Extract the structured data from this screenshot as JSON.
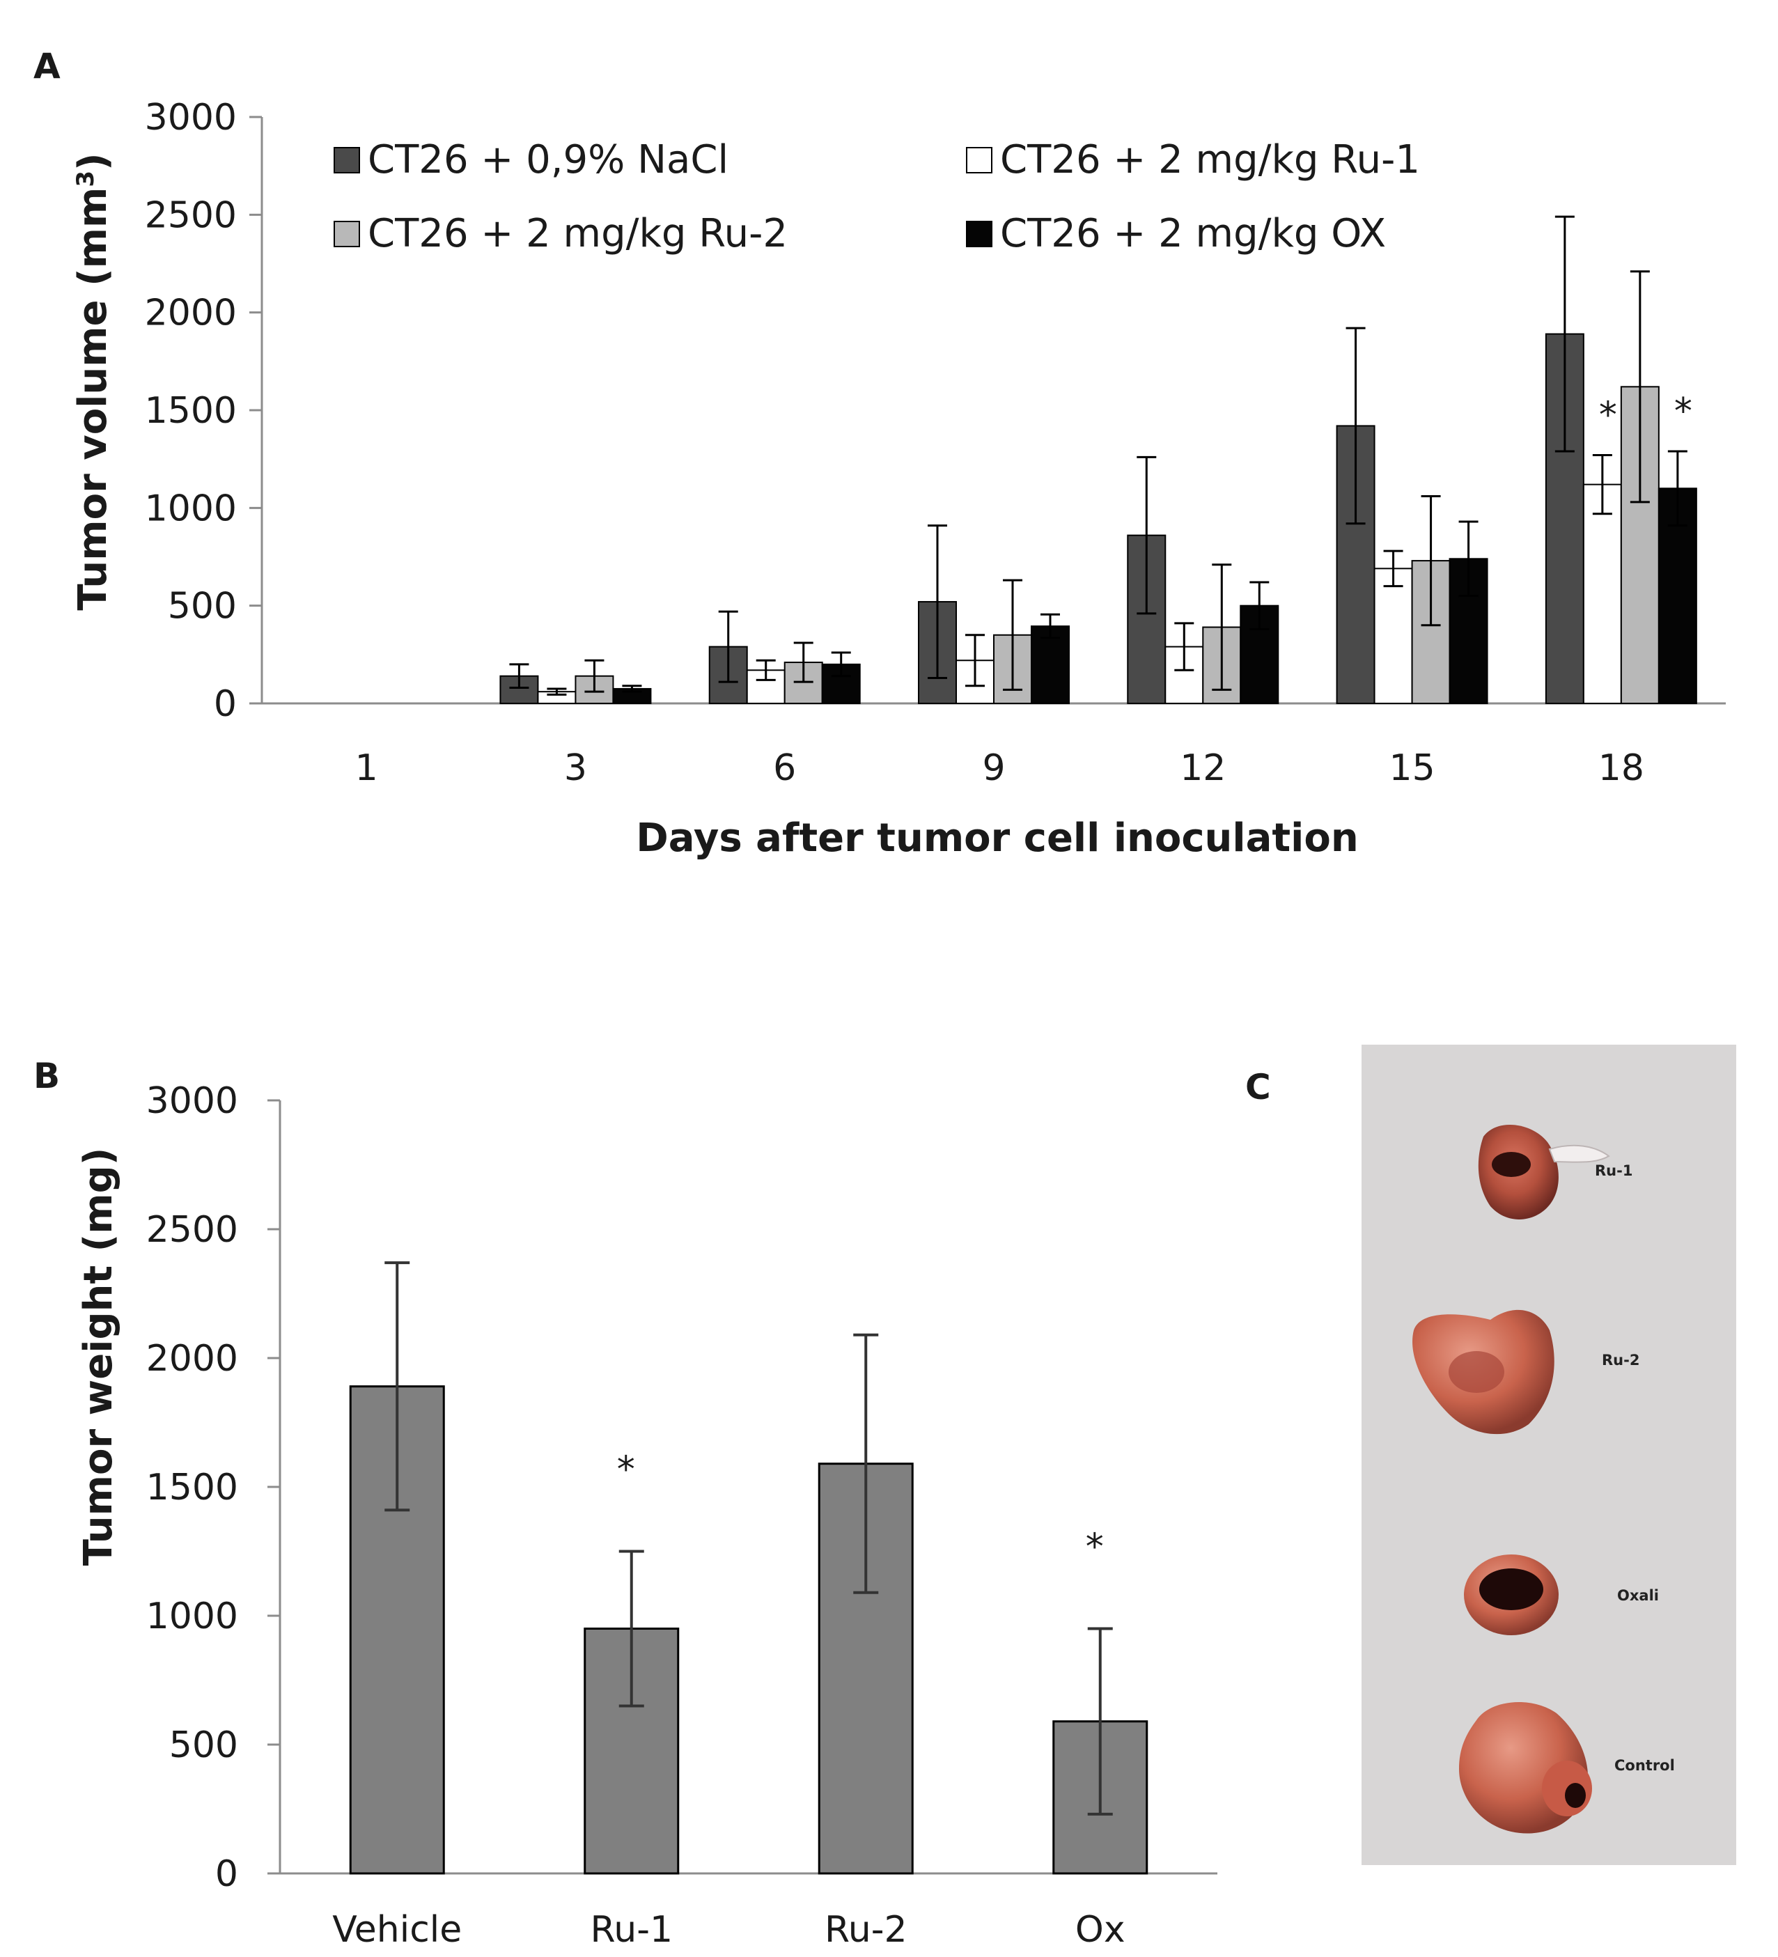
{
  "panel_a": {
    "letter": "A",
    "chart_data": {
      "type": "bar",
      "ylabel_main": "Tumor volume (mm",
      "ylabel_sup": "3",
      "ylabel_close": ")",
      "xlabel": "Days after tumor cell inoculation",
      "ylim": [
        0,
        3000
      ],
      "yticks": [
        "0",
        "500",
        "1000",
        "1500",
        "2000",
        "2500",
        "3000"
      ],
      "categories": [
        "1",
        "3",
        "6",
        "9",
        "12",
        "15",
        "18"
      ],
      "series": [
        {
          "name": "CT26 + 0,9% NaCl",
          "color": "#4a4a4a",
          "values": [
            0,
            140,
            290,
            520,
            860,
            1420,
            1890
          ],
          "errors": [
            0,
            60,
            180,
            390,
            400,
            500,
            600
          ]
        },
        {
          "name": "CT26 + 2 mg/kg Ru-1",
          "color": "#ffffff",
          "values": [
            0,
            60,
            170,
            220,
            290,
            690,
            1120
          ],
          "errors": [
            0,
            15,
            50,
            130,
            120,
            90,
            150
          ]
        },
        {
          "name": "CT26 + 2 mg/kg Ru-2",
          "color": "#b8b8b8",
          "values": [
            0,
            140,
            210,
            350,
            390,
            730,
            1620
          ],
          "errors": [
            0,
            80,
            100,
            280,
            320,
            330,
            590
          ]
        },
        {
          "name": "CT26 + 2 mg/kg OX",
          "color": "#050505",
          "values": [
            0,
            75,
            200,
            395,
            500,
            740,
            1100
          ],
          "errors": [
            0,
            15,
            60,
            60,
            120,
            190,
            190
          ]
        }
      ],
      "annotations": [
        {
          "text": "*",
          "category": "18",
          "series": 1
        },
        {
          "text": "*",
          "category": "18",
          "series": 3
        }
      ]
    }
  },
  "panel_b": {
    "letter": "B",
    "chart_data": {
      "type": "bar",
      "ylabel": "Tumor weight (mg)",
      "ylim": [
        0,
        3000
      ],
      "yticks": [
        "0",
        "500",
        "1000",
        "1500",
        "2000",
        "2500",
        "3000"
      ],
      "categories": [
        "Vehicle",
        "Ru-1",
        "Ru-2",
        "Ox"
      ],
      "series": [
        {
          "name": "Tumor weight",
          "color": "#808080",
          "values": [
            1890,
            950,
            1590,
            590
          ],
          "errors": [
            480,
            300,
            500,
            360
          ]
        }
      ],
      "annotations": [
        {
          "text": "*",
          "category": "Ru-1"
        },
        {
          "text": "*",
          "category": "Ox"
        }
      ]
    }
  },
  "panel_c": {
    "letter": "C",
    "labels": [
      "Ru-1",
      "Ru-2",
      "Oxali",
      "Control"
    ]
  }
}
